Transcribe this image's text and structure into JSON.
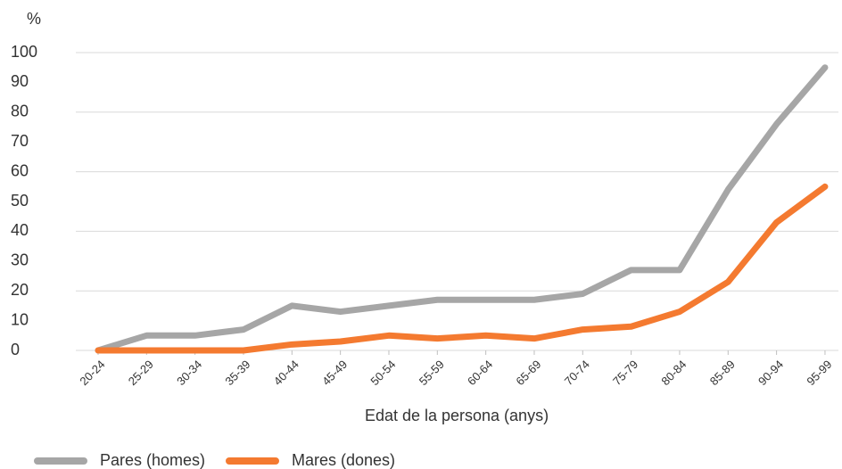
{
  "chart_data": {
    "type": "line",
    "y_label": "%",
    "x_label": "Edat de la persona (anys)",
    "categories": [
      "20-24",
      "25-29",
      "30-34",
      "35-39",
      "40-44",
      "45-49",
      "50-54",
      "55-59",
      "60-64",
      "65-69",
      "70-74",
      "75-79",
      "80-84",
      "85-89",
      "90-94",
      "95-99"
    ],
    "series": [
      {
        "name": "Pares (homes)",
        "color": "#a6a6a6",
        "values": [
          0,
          5,
          5,
          7,
          15,
          13,
          15,
          17,
          17,
          17,
          19,
          27,
          27,
          54,
          76,
          95
        ]
      },
      {
        "name": "Mares (dones)",
        "color": "#f47a30",
        "values": [
          0,
          0,
          0,
          0,
          2,
          3,
          5,
          4,
          5,
          4,
          7,
          8,
          13,
          23,
          43,
          55
        ]
      }
    ],
    "ylim": [
      0,
      100
    ],
    "yticks": [
      0,
      10,
      20,
      30,
      40,
      50,
      60,
      70,
      80,
      90,
      100
    ],
    "grid": true,
    "legend": "bottom-left"
  }
}
